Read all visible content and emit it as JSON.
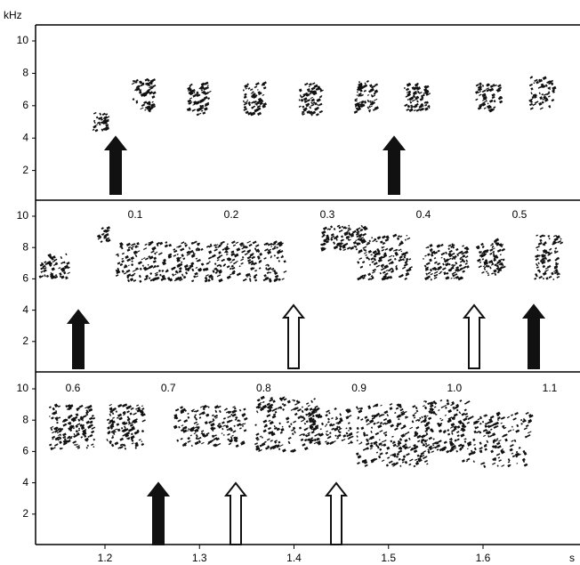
{
  "axis_labels": {
    "y_unit": "kHz",
    "x_unit": "s"
  },
  "panels": [
    {
      "yticks": [
        10,
        8,
        6,
        4,
        2
      ]
    },
    {
      "yticks": [
        10,
        8,
        6,
        4,
        2
      ],
      "xticks": [
        0.1,
        0.2,
        0.3,
        0.4,
        0.5
      ]
    },
    {
      "yticks": [
        10,
        8,
        6,
        4,
        2
      ],
      "xticks": [
        0.6,
        0.7,
        0.8,
        0.9,
        {
          "value": 1,
          "label": "1.0"
        },
        1.1
      ]
    }
  ],
  "bottom_xticks": [
    1.2,
    1.3,
    1.4,
    1.5,
    1.6
  ]
}
